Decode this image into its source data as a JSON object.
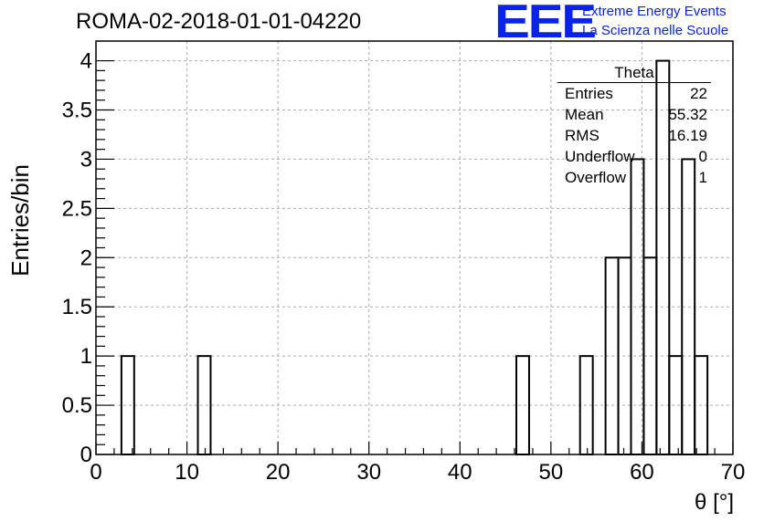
{
  "header": {
    "run_title": "ROMA-02-2018-01-01-04220",
    "logo_text": "EEE",
    "logo_line1": "Extreme Energy Events",
    "logo_line2": "La Scienza nelle Scuole"
  },
  "stats_box": {
    "title": "Theta",
    "rows": [
      {
        "label": "Entries",
        "value": "22"
      },
      {
        "label": "Mean",
        "value": "55.32"
      },
      {
        "label": "RMS",
        "value": "16.19"
      },
      {
        "label": "Underflow",
        "value": "0"
      },
      {
        "label": "Overflow",
        "value": "1"
      }
    ]
  },
  "chart_data": {
    "type": "bar",
    "title": "ROMA-02-2018-01-01-04220",
    "xlabel": "θ [°]",
    "ylabel": "Entries/bin",
    "xlim": [
      0,
      70
    ],
    "ylim": [
      0,
      4.2
    ],
    "grid": true,
    "bin_width": 1.4,
    "xticks": [
      0,
      10,
      20,
      30,
      40,
      50,
      60,
      70
    ],
    "xtick_labels": [
      "0",
      "10",
      "20",
      "30",
      "40",
      "50",
      "60",
      "70"
    ],
    "yticks": [
      0,
      0.5,
      1,
      1.5,
      2,
      2.5,
      3,
      3.5,
      4
    ],
    "ytick_labels": [
      "0",
      "0.5",
      "1",
      "1.5",
      "2",
      "2.5",
      "3",
      "3.5",
      "4"
    ],
    "bins": [
      {
        "x": 2.8,
        "value": 1
      },
      {
        "x": 11.2,
        "value": 1
      },
      {
        "x": 46.2,
        "value": 1
      },
      {
        "x": 53.2,
        "value": 1
      },
      {
        "x": 56.0,
        "value": 2
      },
      {
        "x": 57.4,
        "value": 2
      },
      {
        "x": 58.8,
        "value": 3
      },
      {
        "x": 60.2,
        "value": 2
      },
      {
        "x": 61.6,
        "value": 4
      },
      {
        "x": 63.0,
        "value": 1
      },
      {
        "x": 64.4,
        "value": 3
      },
      {
        "x": 65.8,
        "value": 1
      }
    ]
  }
}
